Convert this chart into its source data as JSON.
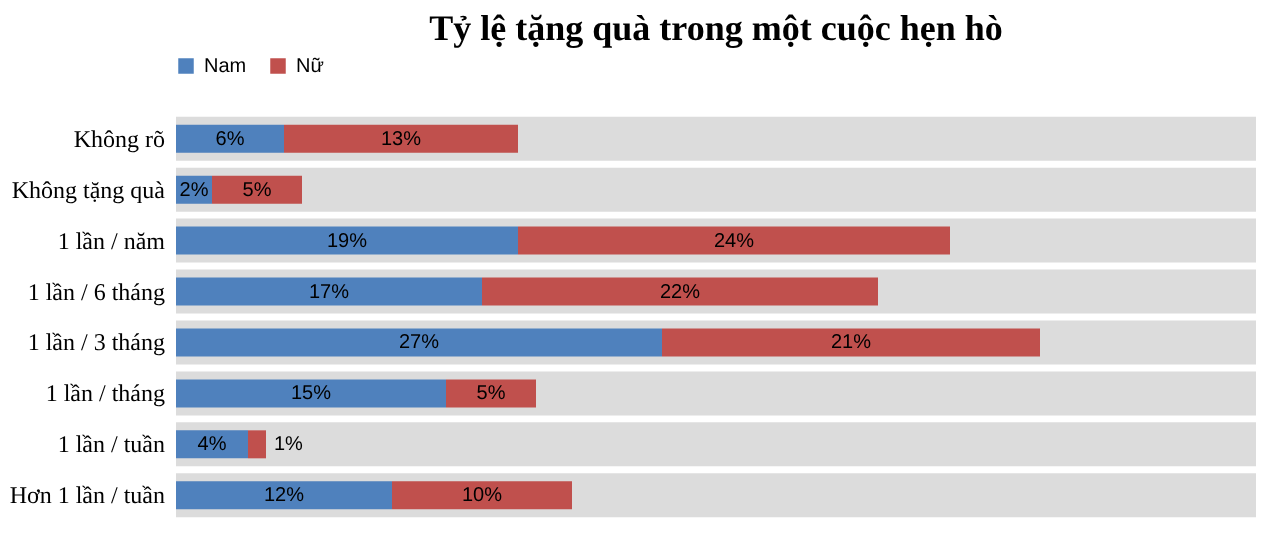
{
  "chart_data": {
    "type": "bar",
    "orientation": "horizontal",
    "stacked": true,
    "title": "Tỷ lệ tặng quà trong một cuộc hẹn hò",
    "categories": [
      "Không rõ",
      "Không tặng quà",
      "1 lần / năm",
      "1 lần / 6 tháng",
      "1 lần / 3 tháng",
      "1 lần / tháng",
      "1 lần / tuần",
      "Hơn 1 lần / tuần"
    ],
    "series": [
      {
        "name": "Nam",
        "color": "#4f81bd",
        "values": [
          6,
          2,
          19,
          17,
          27,
          15,
          4,
          12
        ],
        "value_labels": [
          "6%",
          "2%",
          "19%",
          "17%",
          "27%",
          "15%",
          "4%",
          "12%"
        ]
      },
      {
        "name": "Nữ",
        "color": "#c0504d",
        "values": [
          13,
          5,
          24,
          22,
          21,
          5,
          1,
          10
        ],
        "value_labels": [
          "13%",
          "5%",
          "24%",
          "22%",
          "21%",
          "5%",
          "1%",
          "10%"
        ]
      }
    ],
    "xlim": [
      0,
      60
    ],
    "legend": "top",
    "grid": false
  }
}
